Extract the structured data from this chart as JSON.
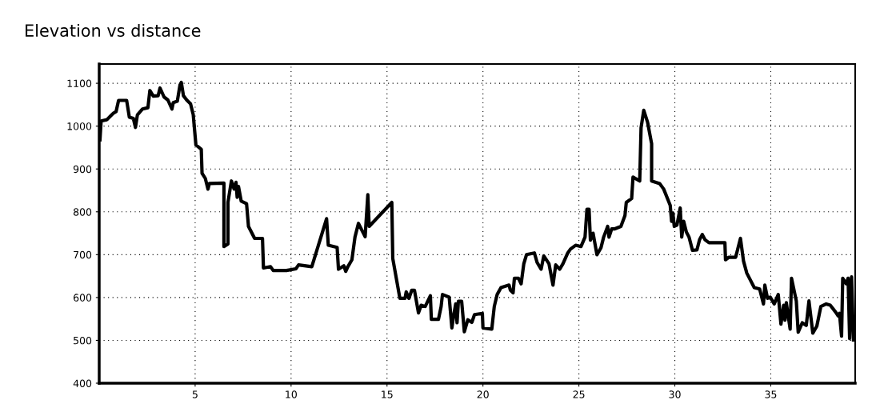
{
  "chart_data": {
    "type": "line",
    "title": "Elevation vs distance",
    "xlim": [
      0,
      39.4
    ],
    "xticks": [
      5,
      10,
      15,
      20,
      25,
      30,
      35
    ],
    "ylim": [
      400,
      1145
    ],
    "yticks": [
      400,
      500,
      600,
      700,
      800,
      900,
      1000,
      1100
    ],
    "grid": true,
    "line_style": "solid",
    "series": [
      {
        "color": "#000000",
        "x": [
          0.04,
          0.1,
          0.4,
          0.6,
          0.74,
          0.88,
          1.01,
          1.43,
          1.57,
          1.78,
          1.89,
          1.99,
          2.26,
          2.54,
          2.64,
          2.82,
          3.07,
          3.17,
          3.38,
          3.58,
          3.79,
          3.86,
          4.07,
          4.21,
          4.28,
          4.39,
          4.56,
          4.76,
          4.9,
          5.04,
          5.32,
          5.36,
          5.53,
          5.67,
          5.74,
          6.5,
          6.5,
          6.71,
          6.71,
          6.89,
          7.03,
          7.13,
          7.19,
          7.26,
          7.4,
          7.68,
          7.78,
          8.1,
          8.51,
          8.56,
          8.93,
          9.07,
          9.76,
          10.25,
          10.39,
          11.08,
          11.85,
          11.94,
          12.4,
          12.47,
          12.75,
          12.85,
          12.96,
          13.17,
          13.33,
          13.51,
          13.86,
          14.0,
          14.07,
          15.25,
          15.3,
          15.67,
          15.94,
          16.0,
          16.14,
          16.29,
          16.43,
          16.64,
          16.78,
          16.99,
          17.13,
          17.26,
          17.31,
          17.68,
          17.82,
          17.89,
          18.24,
          18.38,
          18.47,
          18.58,
          18.65,
          18.72,
          18.89,
          19.03,
          19.21,
          19.42,
          19.56,
          19.97,
          20.0,
          20.46,
          20.59,
          20.74,
          20.94,
          21.36,
          21.43,
          21.57,
          21.64,
          21.85,
          21.99,
          22.13,
          22.27,
          22.68,
          22.82,
          23.03,
          23.17,
          23.44,
          23.65,
          23.79,
          24.0,
          24.17,
          24.42,
          24.56,
          24.83,
          25.11,
          25.32,
          25.42,
          25.53,
          25.6,
          25.74,
          25.94,
          26.15,
          26.29,
          26.5,
          26.57,
          26.71,
          26.85,
          27.19,
          27.4,
          27.47,
          27.75,
          27.82,
          28.17,
          28.24,
          28.38,
          28.58,
          28.79,
          28.79,
          29.21,
          29.42,
          29.76,
          29.83,
          29.9,
          29.97,
          30.11,
          30.28,
          30.36,
          30.46,
          30.6,
          30.74,
          30.92,
          31.15,
          31.29,
          31.43,
          31.57,
          31.78,
          32.61,
          32.64,
          32.82,
          33.17,
          33.42,
          33.58,
          33.75,
          34.14,
          34.42,
          34.62,
          34.69,
          34.83,
          34.97,
          35.18,
          35.39,
          35.53,
          35.67,
          35.74,
          35.81,
          36.01,
          36.08,
          36.33,
          36.43,
          36.64,
          36.85,
          36.99,
          37.19,
          37.4,
          37.61,
          37.89,
          38.1,
          38.38,
          38.51,
          38.58,
          38.69,
          38.75,
          38.93,
          39.03,
          39.11,
          39.21,
          39.31
        ],
        "values": [
          968,
          1012,
          1015,
          1024,
          1030,
          1034,
          1060,
          1060,
          1021,
          1018,
          997,
          1026,
          1040,
          1043,
          1083,
          1070,
          1071,
          1089,
          1068,
          1061,
          1040,
          1055,
          1058,
          1096,
          1102,
          1071,
          1061,
          1052,
          1027,
          956,
          946,
          890,
          878,
          853,
          866,
          867,
          719,
          725,
          822,
          872,
          853,
          869,
          834,
          859,
          825,
          819,
          766,
          738,
          738,
          669,
          672,
          663,
          663,
          667,
          676,
          672,
          784,
          722,
          717,
          666,
          674,
          661,
          672,
          688,
          741,
          773,
          742,
          840,
          766,
          822,
          691,
          598,
          598,
          613,
          598,
          617,
          617,
          564,
          582,
          579,
          592,
          604,
          549,
          549,
          579,
          607,
          601,
          529,
          557,
          585,
          541,
          591,
          591,
          520,
          548,
          542,
          560,
          563,
          529,
          526,
          579,
          607,
          623,
          629,
          617,
          611,
          645,
          645,
          632,
          679,
          700,
          704,
          682,
          666,
          697,
          679,
          629,
          676,
          666,
          679,
          704,
          713,
          722,
          719,
          741,
          806,
          806,
          734,
          750,
          700,
          716,
          741,
          766,
          741,
          760,
          760,
          766,
          791,
          822,
          831,
          881,
          872,
          996,
          1037,
          1009,
          959,
          872,
          866,
          853,
          815,
          778,
          797,
          766,
          769,
          809,
          741,
          778,
          753,
          741,
          710,
          711,
          735,
          747,
          735,
          728,
          728,
          688,
          694,
          694,
          738,
          685,
          657,
          623,
          620,
          585,
          629,
          598,
          601,
          585,
          607,
          538,
          582,
          547,
          588,
          526,
          645,
          592,
          519,
          541,
          535,
          592,
          517,
          533,
          579,
          585,
          582,
          566,
          557,
          563,
          510,
          645,
          632,
          645,
          504,
          648,
          501
        ]
      }
    ]
  }
}
